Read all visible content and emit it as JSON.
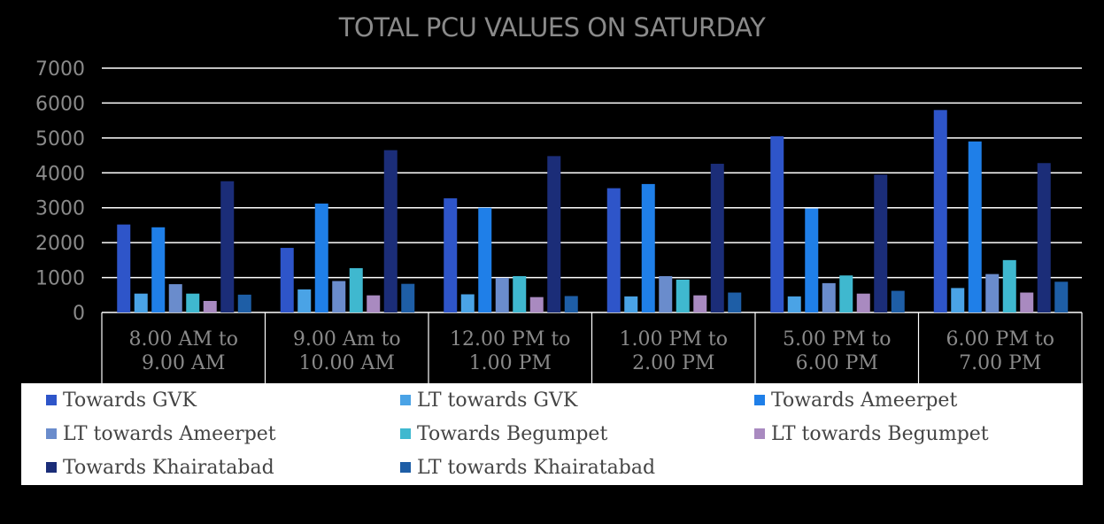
{
  "chart_data": {
    "type": "bar",
    "title": "TOTAL PCU VALUES ON SATURDAY",
    "xlabel": "",
    "ylabel": "",
    "ylim": [
      0,
      7000
    ],
    "yticks": [
      "0",
      "1000",
      "2000",
      "3000",
      "4000",
      "5000",
      "6000",
      "7000"
    ],
    "grid": true,
    "legend_position": "bottom",
    "categories": [
      [
        "8.00 AM to",
        "9.00 AM"
      ],
      [
        "9.00 Am to",
        "10.00 AM"
      ],
      [
        "12.00 PM to",
        "1.00 PM"
      ],
      [
        "1.00 PM to",
        "2.00 PM"
      ],
      [
        "5.00 PM to",
        "6.00 PM"
      ],
      [
        "6.00 PM to",
        "7.00 PM"
      ]
    ],
    "series": [
      {
        "name": "Towards GVK",
        "color": "#2e55c9",
        "values": [
          2520,
          1850,
          3270,
          3560,
          5050,
          5800
        ]
      },
      {
        "name": "LT towards GVK",
        "color": "#4aa3e6",
        "values": [
          540,
          660,
          520,
          460,
          460,
          700
        ]
      },
      {
        "name": "Towards Ameerpet",
        "color": "#1f7fe8",
        "values": [
          2440,
          3120,
          3000,
          3680,
          2980,
          4900
        ]
      },
      {
        "name": "LT towards Ameerpet",
        "color": "#6a8ccc",
        "values": [
          810,
          900,
          990,
          1040,
          840,
          1100
        ]
      },
      {
        "name": "Towards Begumpet",
        "color": "#3fb8cf",
        "values": [
          540,
          1270,
          1040,
          940,
          1060,
          1500
        ]
      },
      {
        "name": "LT towards Begumpet",
        "color": "#a98ac0",
        "values": [
          330,
          490,
          440,
          490,
          540,
          570
        ]
      },
      {
        "name": "Towards Khairatabad",
        "color": "#1b2d78",
        "values": [
          3760,
          4650,
          4480,
          4260,
          3950,
          4280
        ]
      },
      {
        "name": "LT towards Khairatabad",
        "color": "#1e5ea6",
        "values": [
          510,
          820,
          470,
          570,
          620,
          880
        ]
      }
    ]
  }
}
